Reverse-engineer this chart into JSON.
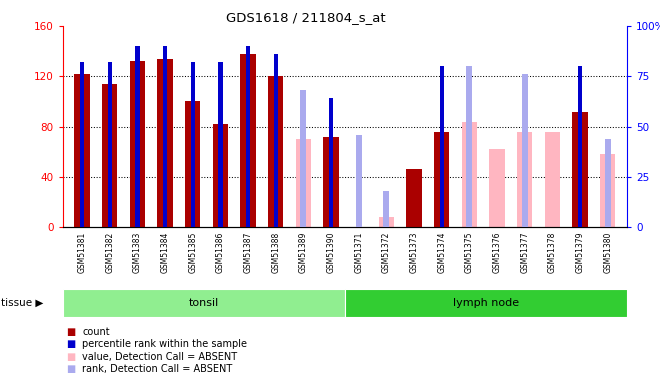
{
  "title": "GDS1618 / 211804_s_at",
  "samples": [
    "GSM51381",
    "GSM51382",
    "GSM51383",
    "GSM51384",
    "GSM51385",
    "GSM51386",
    "GSM51387",
    "GSM51388",
    "GSM51389",
    "GSM51390",
    "GSM51371",
    "GSM51372",
    "GSM51373",
    "GSM51374",
    "GSM51375",
    "GSM51376",
    "GSM51377",
    "GSM51378",
    "GSM51379",
    "GSM51380"
  ],
  "count_values": [
    122,
    114,
    132,
    134,
    100,
    82,
    138,
    120,
    null,
    72,
    null,
    null,
    46,
    76,
    null,
    null,
    null,
    null,
    92,
    null
  ],
  "count_absent": [
    null,
    null,
    null,
    null,
    null,
    null,
    null,
    null,
    70,
    null,
    null,
    8,
    null,
    null,
    84,
    62,
    76,
    76,
    null,
    58
  ],
  "rank_present": [
    82,
    82,
    90,
    90,
    82,
    82,
    90,
    86,
    null,
    64,
    null,
    null,
    null,
    80,
    null,
    null,
    null,
    null,
    80,
    null
  ],
  "rank_absent": [
    null,
    null,
    null,
    null,
    null,
    null,
    null,
    null,
    68,
    null,
    46,
    18,
    null,
    null,
    80,
    null,
    76,
    null,
    null,
    44
  ],
  "tissue_groups": [
    {
      "label": "tonsil",
      "start": 0,
      "end": 10,
      "color": "#90EE90"
    },
    {
      "label": "lymph node",
      "start": 10,
      "end": 20,
      "color": "#32CD32"
    }
  ],
  "ylim_left": [
    0,
    160
  ],
  "ylim_right": [
    0,
    100
  ],
  "yticks_left": [
    0,
    40,
    80,
    120,
    160
  ],
  "ytick_labels_left": [
    "0",
    "40",
    "80",
    "120",
    "160"
  ],
  "yticks_right": [
    0,
    25,
    50,
    75,
    100
  ],
  "ytick_labels_right": [
    "0",
    "25",
    "50",
    "75",
    "100%"
  ],
  "color_count": "#AA0000",
  "color_rank_present": "#0000CC",
  "color_absent_value": "#FFB6C1",
  "color_absent_rank": "#AAAAEE",
  "bg_color": "#DCDCDC"
}
